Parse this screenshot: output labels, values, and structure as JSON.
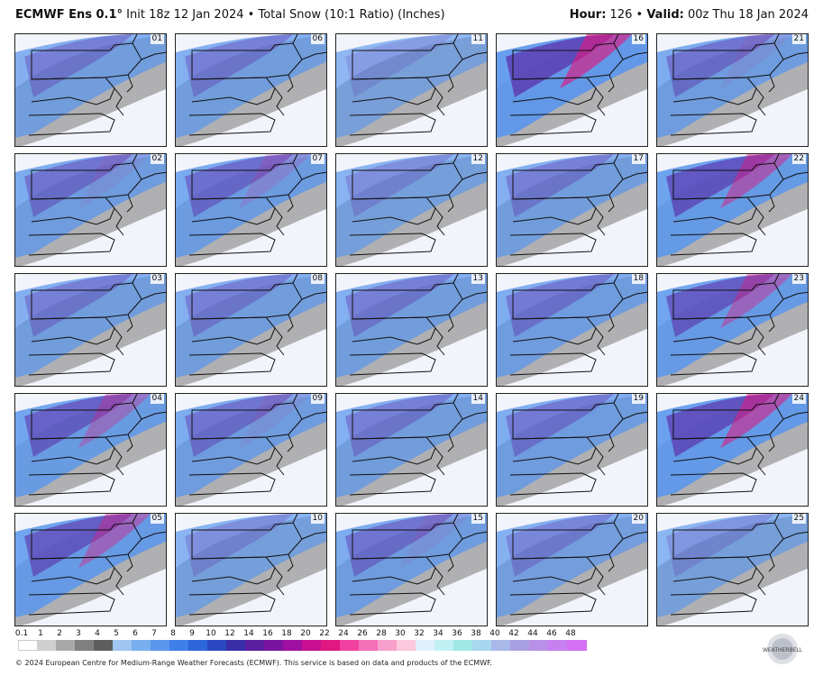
{
  "header": {
    "model": "ECMWF Ens 0.1",
    "init": "Init 18z 12 Jan 2024",
    "product": "Total Snow (10:1 Ratio) (Inches)",
    "hour_label": "Hour:",
    "hour": "126",
    "valid_label": "Valid:",
    "valid": "00z Thu 18 Jan 2024"
  },
  "members": [
    "01",
    "06",
    "11",
    "16",
    "21",
    "02",
    "07",
    "12",
    "17",
    "22",
    "03",
    "08",
    "13",
    "18",
    "23",
    "04",
    "09",
    "14",
    "19",
    "24",
    "05",
    "10",
    "15",
    "20",
    "25"
  ],
  "intensity": [
    0.45,
    0.45,
    0.25,
    0.9,
    0.55,
    0.55,
    0.6,
    0.35,
    0.45,
    0.8,
    0.45,
    0.45,
    0.45,
    0.5,
    0.75,
    0.7,
    0.55,
    0.45,
    0.5,
    0.85,
    0.75,
    0.35,
    0.55,
    0.4,
    0.3
  ],
  "legend": {
    "ticks": [
      "0.1",
      "1",
      "2",
      "3",
      "4",
      "5",
      "6",
      "7",
      "8",
      "9",
      "10",
      "12",
      "14",
      "16",
      "18",
      "20",
      "22",
      "24",
      "26",
      "28",
      "30",
      "32",
      "34",
      "36",
      "38",
      "40",
      "42",
      "44",
      "46",
      "48"
    ],
    "colors": [
      "#ffffff",
      "#cfcfcf",
      "#a8a8a8",
      "#808080",
      "#5e5e5e",
      "#9ec6f0",
      "#78aef0",
      "#5a96ec",
      "#3f7fe8",
      "#2d66d8",
      "#2a48c0",
      "#3a2ea8",
      "#5a1ea0",
      "#7a14a0",
      "#a010a0",
      "#c81090",
      "#e01880",
      "#f040a0",
      "#f470b8",
      "#f8a0cc",
      "#fcc8dc",
      "#e0f0ff",
      "#c0f0f4",
      "#a0e8e8",
      "#a8d8f0",
      "#a8b8e8",
      "#a8a0e0",
      "#b890e8",
      "#c880f0",
      "#d470f4"
    ]
  },
  "footer": "© 2024 European Centre for Medium-Range Weather Forecasts (ECMWF). This service is based on data and products of the ECMWF.",
  "logo_text": "WEATHERBELL"
}
